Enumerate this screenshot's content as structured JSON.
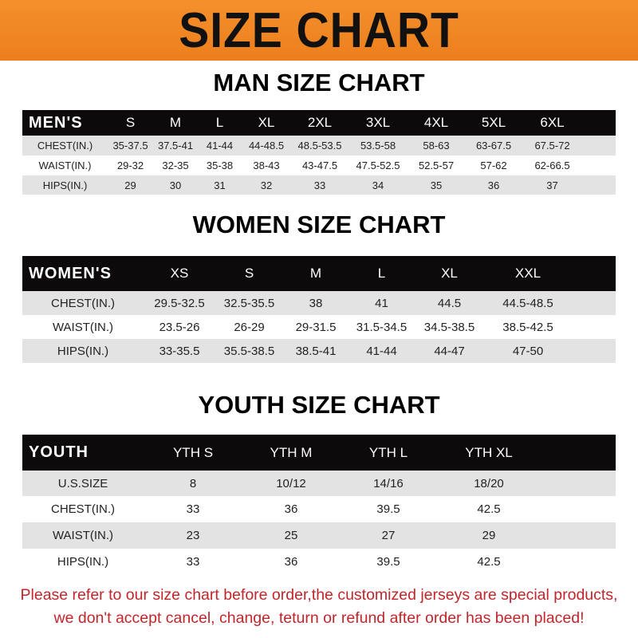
{
  "banner": {
    "title": "SIZE CHART",
    "color": "#f08a24"
  },
  "men": {
    "title": "MAN SIZE CHART",
    "header": [
      "MEN'S",
      "S",
      "M",
      "L",
      "XL",
      "2XL",
      "3XL",
      "4XL",
      "5XL",
      "6XL"
    ],
    "rows": [
      [
        "CHEST(IN.)",
        "35-37.5",
        "37.5-41",
        "41-44",
        "44-48.5",
        "48.5-53.5",
        "53.5-58",
        "58-63",
        "63-67.5",
        "67.5-72"
      ],
      [
        "WAIST(IN.)",
        "29-32",
        "32-35",
        "35-38",
        "38-43",
        "43-47.5",
        "47.5-52.5",
        "52.5-57",
        "57-62",
        "62-66.5"
      ],
      [
        "HIPS(IN.)",
        "29",
        "30",
        "31",
        "32",
        "33",
        "34",
        "35",
        "36",
        "37"
      ]
    ]
  },
  "women": {
    "title": "WOMEN SIZE CHART",
    "header": [
      "WOMEN'S",
      "XS",
      "S",
      "M",
      "L",
      "XL",
      "XXL"
    ],
    "rows": [
      [
        "CHEST(IN.)",
        "29.5-32.5",
        "32.5-35.5",
        "38",
        "41",
        "44.5",
        "44.5-48.5"
      ],
      [
        "WAIST(IN.)",
        "23.5-26",
        "26-29",
        "29-31.5",
        "31.5-34.5",
        "34.5-38.5",
        "38.5-42.5"
      ],
      [
        "HIPS(IN.)",
        "33-35.5",
        "35.5-38.5",
        "38.5-41",
        "41-44",
        "44-47",
        "47-50"
      ]
    ]
  },
  "youth": {
    "title": "YOUTH SIZE CHART",
    "header": [
      "YOUTH",
      "YTH S",
      "YTH M",
      "YTH L",
      "YTH XL"
    ],
    "rows": [
      [
        "U.S.SIZE",
        "8",
        "10/12",
        "14/16",
        "18/20"
      ],
      [
        "CHEST(IN.)",
        "33",
        "36",
        "39.5",
        "42.5"
      ],
      [
        "WAIST(IN.)",
        "23",
        "25",
        "27",
        "29"
      ],
      [
        "HIPS(IN.)",
        "33",
        "36",
        "39.5",
        "42.5"
      ]
    ]
  },
  "notice": {
    "line1": "Please refer to our size chart before order,the customized jerseys are special products,",
    "line2": "we don't accept cancel, change, teturn or refund after order has been placed!",
    "color": "#c0262b"
  }
}
